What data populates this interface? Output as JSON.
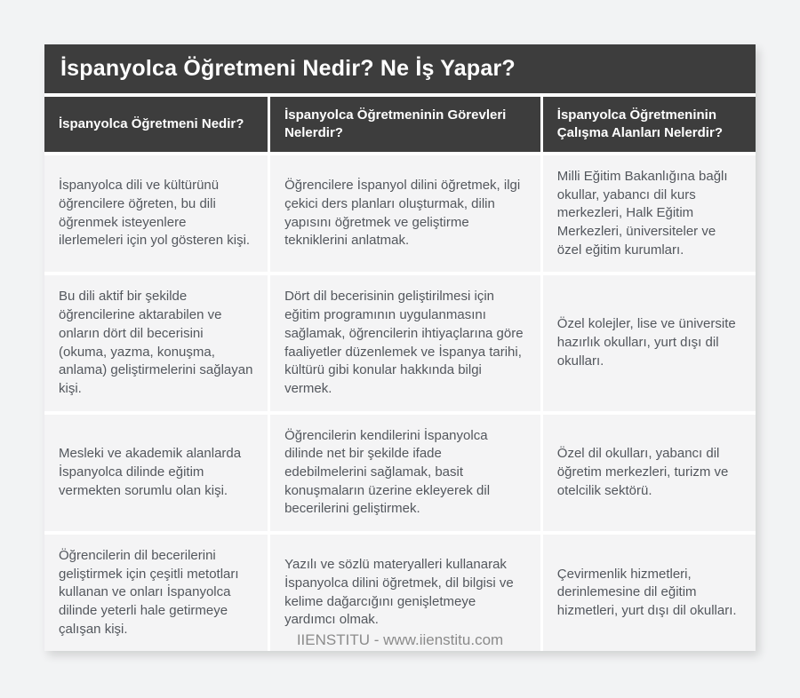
{
  "title_bar": {
    "title": "İspanyolca Öğretmeni Nedir? Ne İş Yapar?"
  },
  "table": {
    "headers": [
      "İspanyolca Öğretmeni Nedir?",
      "İspanyolca Öğretmeninin Görevleri Nelerdir?",
      "İspanyolca Öğretmeninin Çalışma Alanları Nelerdir?"
    ],
    "rows": [
      [
        "İspanyolca dili ve kültürünü öğrencilere öğreten, bu dili öğrenmek isteyenlere ilerlemeleri için yol gösteren kişi.",
        "Öğrencilere İspanyol dilini öğretmek, ilgi çekici ders planları oluşturmak, dilin yapısını öğretmek ve geliştirme tekniklerini anlatmak.",
        "Milli Eğitim Bakanlığına bağlı okullar, yabancı dil kurs merkezleri, Halk Eğitim Merkezleri, üniversiteler ve özel eğitim kurumları."
      ],
      [
        "Bu dili aktif bir şekilde öğrencilerine aktarabilen ve onların dört dil becerisini (okuma, yazma, konuşma, anlama) geliştirmelerini sağlayan kişi.",
        "Dört dil becerisinin geliştirilmesi için eğitim programının uygulanmasını sağlamak, öğrencilerin ihtiyaçlarına göre faaliyetler düzenlemek ve İspanya tarihi, kültürü gibi konular hakkında bilgi vermek.",
        "Özel kolejler, lise ve üniversite hazırlık okulları, yurt dışı dil okulları."
      ],
      [
        "Mesleki ve akademik alanlarda İspanyolca dilinde eğitim vermekten sorumlu olan kişi.",
        "Öğrencilerin kendilerini İspanyolca dilinde net bir şekilde ifade edebilmelerini sağlamak, basit konuşmaların üzerine ekleyerek dil becerilerini geliştirmek.",
        "Özel dil okulları, yabancı dil öğretim merkezleri, turizm ve otelcilik sektörü."
      ],
      [
        "Öğrencilerin dil becerilerini geliştirmek için çeşitli metotları kullanan ve onları İspanyolca dilinde yeterli hale getirmeye çalışan kişi.",
        "Yazılı ve sözlü materyalleri kullanarak İspanyolca dilini öğretmek, dil bilgisi ve kelime dağarcığını genişletmeye yardımcı olmak.",
        "Çevirmenlik hizmetleri, derinlemesine dil eğitim hizmetleri, yurt dışı dil okulları."
      ]
    ]
  },
  "footer": {
    "text": "IIENSTITU - www.iienstitu.com"
  },
  "colors": {
    "header_bg": "#3d3d3d",
    "header_text": "#ffffff",
    "cell_bg": "#f4f4f5",
    "cell_text": "#53575d",
    "page_bg": "#f2f3f4",
    "footer_text": "#8b8b8b"
  }
}
